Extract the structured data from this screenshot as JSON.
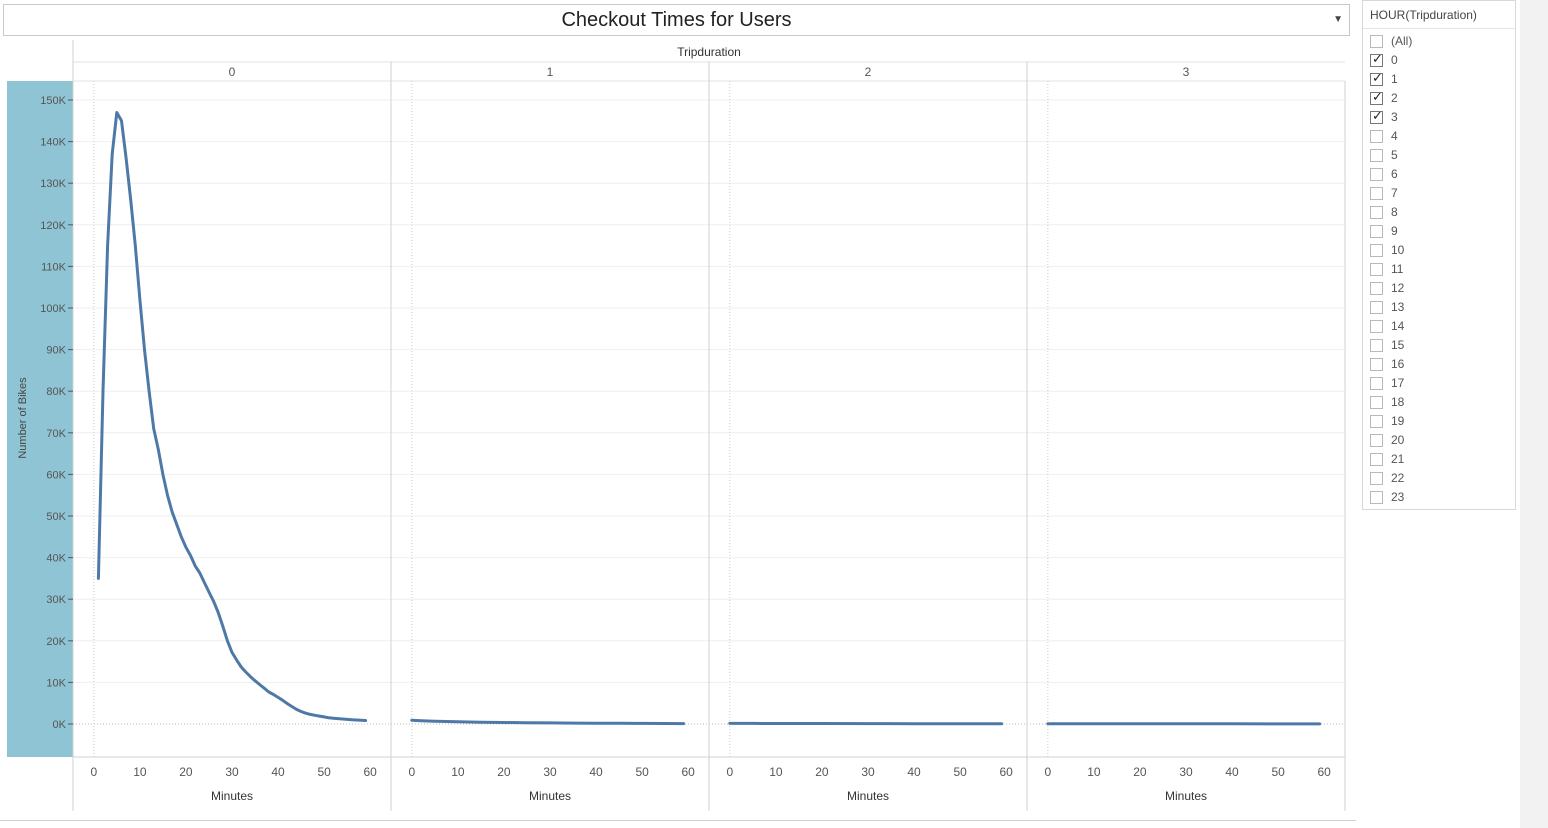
{
  "title": "Checkout Times for Users",
  "filter": {
    "title": "HOUR(Tripduration)",
    "items": [
      {
        "label": "(All)",
        "checked": false
      },
      {
        "label": "0",
        "checked": true
      },
      {
        "label": "1",
        "checked": true
      },
      {
        "label": "2",
        "checked": true
      },
      {
        "label": "3",
        "checked": true
      },
      {
        "label": "4",
        "checked": false
      },
      {
        "label": "5",
        "checked": false
      },
      {
        "label": "6",
        "checked": false
      },
      {
        "label": "7",
        "checked": false
      },
      {
        "label": "8",
        "checked": false
      },
      {
        "label": "9",
        "checked": false
      },
      {
        "label": "10",
        "checked": false
      },
      {
        "label": "11",
        "checked": false
      },
      {
        "label": "12",
        "checked": false
      },
      {
        "label": "13",
        "checked": false
      },
      {
        "label": "14",
        "checked": false
      },
      {
        "label": "15",
        "checked": false
      },
      {
        "label": "16",
        "checked": false
      },
      {
        "label": "17",
        "checked": false
      },
      {
        "label": "18",
        "checked": false
      },
      {
        "label": "19",
        "checked": false
      },
      {
        "label": "20",
        "checked": false
      },
      {
        "label": "21",
        "checked": false
      },
      {
        "label": "22",
        "checked": false
      },
      {
        "label": "23",
        "checked": false
      }
    ]
  },
  "chart_data": {
    "type": "line",
    "title": "Checkout Times for Users",
    "column_header": "Tripduration",
    "ylabel": "Number of Bikes",
    "xlabel": "Minutes",
    "ylim": [
      0,
      155000
    ],
    "xlim": [
      -3,
      63
    ],
    "yticks": [
      0,
      10000,
      20000,
      30000,
      40000,
      50000,
      60000,
      70000,
      80000,
      90000,
      100000,
      110000,
      120000,
      130000,
      140000,
      150000
    ],
    "ytick_labels": [
      "0K",
      "10K",
      "20K",
      "30K",
      "40K",
      "50K",
      "60K",
      "70K",
      "80K",
      "90K",
      "100K",
      "110K",
      "120K",
      "130K",
      "140K",
      "150K"
    ],
    "xticks": [
      0,
      10,
      20,
      30,
      40,
      50,
      60
    ],
    "xtick_labels": [
      "0",
      "10",
      "20",
      "30",
      "40",
      "50",
      "60"
    ],
    "grid": true,
    "color": "#4e79a7",
    "series": [
      {
        "panel": "0",
        "x": [
          1,
          2,
          3,
          4,
          5,
          6,
          7,
          8,
          9,
          10,
          11,
          12,
          13,
          14,
          15,
          16,
          17,
          18,
          19,
          20,
          21,
          22,
          23,
          24,
          25,
          26,
          27,
          28,
          29,
          30,
          31,
          32,
          33,
          34,
          35,
          36,
          37,
          38,
          39,
          40,
          41,
          42,
          43,
          44,
          45,
          46,
          47,
          48,
          49,
          50,
          51,
          52,
          53,
          54,
          55,
          56,
          57,
          58,
          59
        ],
        "values": [
          35000,
          80000,
          115000,
          137000,
          147000,
          145000,
          136000,
          126000,
          115000,
          102000,
          90000,
          80000,
          71000,
          66000,
          60000,
          55000,
          51000,
          48000,
          45000,
          42500,
          40500,
          38000,
          36300,
          34000,
          31700,
          29500,
          26800,
          23500,
          20000,
          17200,
          15400,
          13700,
          12500,
          11400,
          10400,
          9500,
          8600,
          7700,
          7100,
          6400,
          5700,
          4900,
          4200,
          3500,
          3000,
          2600,
          2300,
          2100,
          1900,
          1700,
          1500,
          1400,
          1300,
          1200,
          1100,
          1000,
          950,
          900,
          850
        ]
      },
      {
        "panel": "1",
        "x": [
          0,
          2,
          5,
          10,
          15,
          20,
          25,
          30,
          35,
          40,
          45,
          50,
          55,
          59
        ],
        "values": [
          900,
          800,
          650,
          520,
          430,
          360,
          300,
          260,
          220,
          190,
          160,
          140,
          120,
          100
        ]
      },
      {
        "panel": "2",
        "x": [
          0,
          5,
          10,
          20,
          30,
          40,
          50,
          59
        ],
        "values": [
          150,
          140,
          130,
          110,
          95,
          80,
          70,
          60
        ]
      },
      {
        "panel": "3",
        "x": [
          0,
          10,
          20,
          30,
          40,
          50,
          59
        ],
        "values": [
          60,
          55,
          50,
          45,
          40,
          35,
          30
        ]
      }
    ]
  }
}
